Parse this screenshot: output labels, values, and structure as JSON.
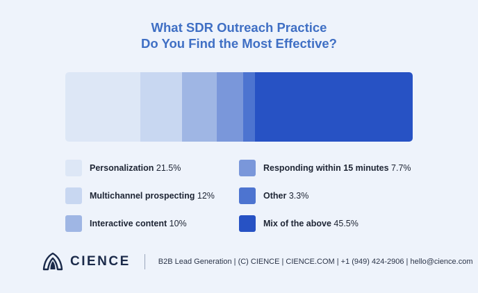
{
  "chart_data": {
    "type": "bar",
    "orientation": "horizontal-stacked-100",
    "title": [
      "What SDR Outreach Practice",
      "Do You Find the Most Effective?"
    ],
    "series": [
      {
        "name": "Personalization",
        "label": "21.5%",
        "value": 21.5,
        "color": "#dde7f6"
      },
      {
        "name": "Multichannel prospecting",
        "label": "12%",
        "value": 12,
        "color": "#c8d7f1"
      },
      {
        "name": "Interactive content",
        "label": "10%",
        "value": 10,
        "color": "#9fb6e4"
      },
      {
        "name": "Responding within 15 minutes",
        "label": "7.7%",
        "value": 7.7,
        "color": "#7a97da"
      },
      {
        "name": "Other",
        "label": "3.3%",
        "value": 3.3,
        "color": "#4d74d0"
      },
      {
        "name": "Mix of the above",
        "label": "45.5%",
        "value": 45.5,
        "color": "#2752c4"
      }
    ],
    "legend": "below-two-columns"
  },
  "footer": {
    "brand": "CIENCE",
    "text": "B2B Lead Generation | (C) CIENCE | CIENCE.COM | +1 (949) 424-2906 | hello@cience.com",
    "logo_icon": "cience-logo-icon"
  }
}
